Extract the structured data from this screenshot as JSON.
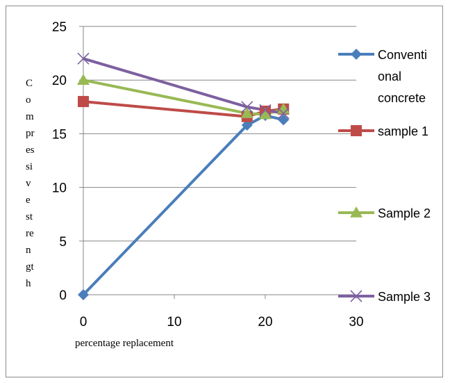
{
  "chart_data": {
    "type": "line",
    "xlabel": "percentage replacement",
    "ylabel_lines": [
      "C",
      "o",
      "m",
      "pr",
      "es",
      "si",
      "v",
      "e",
      "st",
      "re",
      "n",
      "gt",
      "h"
    ],
    "xlim": [
      0,
      30
    ],
    "ylim": [
      0,
      25
    ],
    "xticks": [
      0,
      10,
      20,
      30
    ],
    "yticks": [
      0,
      5,
      10,
      15,
      20,
      25
    ],
    "grid": "horizontal",
    "legend_position": "right",
    "series": [
      {
        "name": "Conventional concrete",
        "legend_lines": [
          "Conventi",
          "onal",
          "concrete"
        ],
        "color": "#4a7ebb",
        "marker": "diamond",
        "x": [
          0,
          18,
          20,
          22
        ],
        "y": [
          0,
          15.8,
          16.7,
          16.3
        ]
      },
      {
        "name": "sample 1",
        "legend_lines": [
          "sample 1"
        ],
        "color": "#be4b48",
        "marker": "square",
        "x": [
          0,
          18,
          20,
          22
        ],
        "y": [
          18,
          16.6,
          17.1,
          17.3
        ]
      },
      {
        "name": "Sample 2",
        "legend_lines": [
          "Sample 2"
        ],
        "color": "#98b954",
        "marker": "triangle",
        "x": [
          0,
          18,
          20,
          22
        ],
        "y": [
          20,
          16.9,
          16.8,
          17.3
        ]
      },
      {
        "name": "Sample 3",
        "legend_lines": [
          "Sample 3"
        ],
        "color": "#7d60a0",
        "marker": "x",
        "x": [
          0,
          18,
          20,
          22
        ],
        "y": [
          22,
          17.5,
          17.2,
          16.9
        ]
      }
    ]
  }
}
